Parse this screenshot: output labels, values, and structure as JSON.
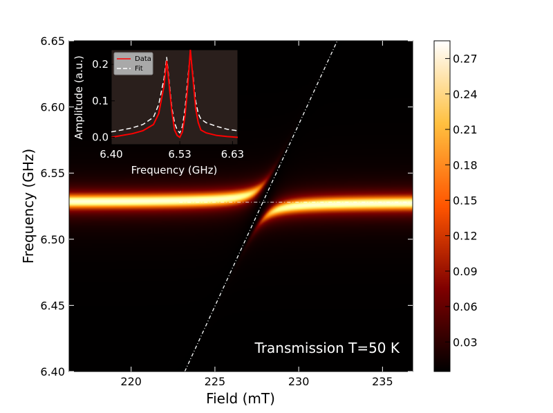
{
  "chart_data": {
    "type": "heatmap",
    "xlabel": "Field (mT)",
    "ylabel": "Frequency (GHz)",
    "xlim": [
      216.3,
      236.8
    ],
    "ylim": [
      6.4,
      6.65
    ],
    "x_ticks": [
      "220",
      "225",
      "230",
      "235"
    ],
    "y_ticks": [
      "6.40",
      "6.45",
      "6.50",
      "6.55",
      "6.60",
      "6.65"
    ],
    "annotation": "Transmission T=50 K",
    "colormap": "afmhot",
    "colorbar": {
      "range": [
        0.005,
        0.285
      ],
      "ticks": [
        "0.03",
        "0.06",
        "0.09",
        "0.12",
        "0.15",
        "0.18",
        "0.21",
        "0.24",
        "0.27"
      ]
    },
    "model": {
      "cavity_frequency": 6.528,
      "magnon_line": {
        "x": [
          223.2,
          232.3
        ],
        "y": [
          6.4,
          6.65
        ]
      },
      "crossing_field": 227.9
    },
    "inset": {
      "type": "line",
      "xlabel": "Frequency (GHz)",
      "ylabel": "Amplitude (a.u.)",
      "xlim": [
        6.4,
        6.64
      ],
      "ylim": [
        -0.02,
        0.24
      ],
      "x_ticks": [
        "6.40",
        "6.53",
        "6.63"
      ],
      "y_ticks": [
        "0.0",
        "0.1",
        "0.2"
      ],
      "series": [
        {
          "name": "Data",
          "color": "#ff0000",
          "x": [
            6.4,
            6.42,
            6.44,
            6.46,
            6.48,
            6.49,
            6.5,
            6.505,
            6.51,
            6.515,
            6.52,
            6.525,
            6.53,
            6.535,
            6.54,
            6.545,
            6.55,
            6.555,
            6.56,
            6.565,
            6.57,
            6.58,
            6.6,
            6.62,
            6.64
          ],
          "y": [
            0.0,
            0.005,
            0.01,
            0.018,
            0.035,
            0.065,
            0.14,
            0.21,
            0.14,
            0.07,
            0.02,
            0.005,
            0.0,
            0.015,
            0.06,
            0.14,
            0.24,
            0.16,
            0.08,
            0.04,
            0.02,
            0.012,
            0.005,
            0.002,
            0.0
          ]
        },
        {
          "name": "Fit",
          "color": "#ffffff",
          "x": [
            6.4,
            6.42,
            6.44,
            6.46,
            6.48,
            6.49,
            6.5,
            6.505,
            6.51,
            6.515,
            6.52,
            6.525,
            6.53,
            6.535,
            6.54,
            6.545,
            6.55,
            6.555,
            6.56,
            6.565,
            6.57,
            6.58,
            6.6,
            6.62,
            6.64
          ],
          "y": [
            0.015,
            0.02,
            0.026,
            0.035,
            0.055,
            0.09,
            0.16,
            0.22,
            0.15,
            0.08,
            0.04,
            0.02,
            0.012,
            0.03,
            0.08,
            0.16,
            0.23,
            0.17,
            0.1,
            0.065,
            0.05,
            0.04,
            0.03,
            0.022,
            0.018
          ]
        }
      ]
    }
  }
}
